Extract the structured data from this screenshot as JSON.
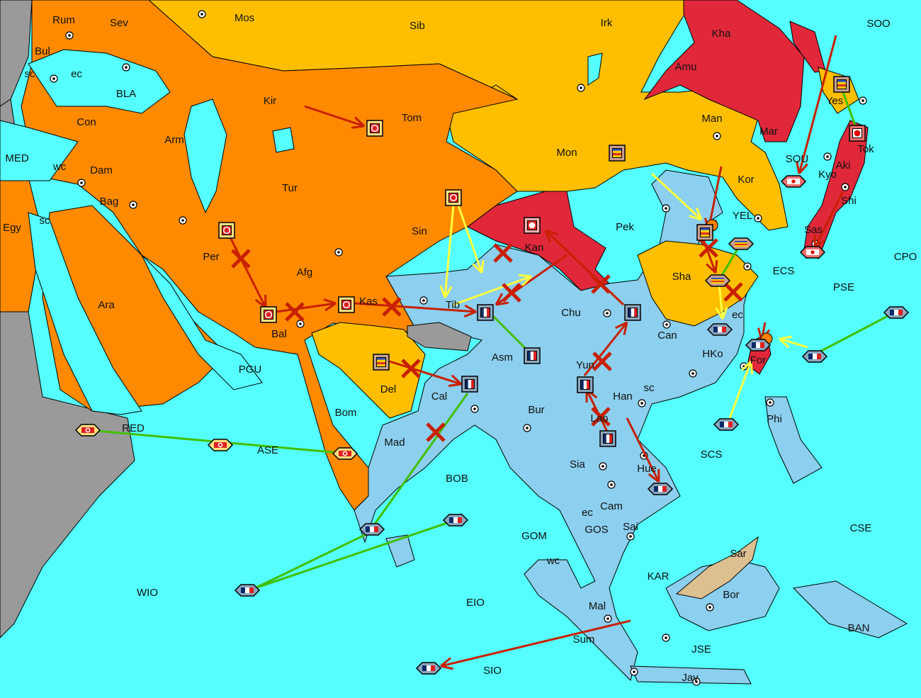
{
  "map": {
    "colors": {
      "sea": "#55ffff",
      "neutral": "#9a9a9a",
      "turkey": "#ff8a00",
      "china": "#ffbf00",
      "russia": "#e0283a",
      "france": "#8ccfee",
      "tan": "#dcc090",
      "order_move": "#c82000",
      "order_support": "#ffff40",
      "order_convoy": "#40c000"
    },
    "regions": [
      "Rum",
      "Sev",
      "Mos",
      "Sib",
      "Irk",
      "Kha",
      "SOO",
      "Bul",
      "sc",
      "ec",
      "BLA",
      "Amu",
      "Kir",
      "Tom",
      "Yes",
      "Con",
      "Man",
      "Mar",
      "Arm",
      "Mon",
      "Tok",
      "MED",
      "wc",
      "Dam",
      "SOU",
      "Kyo",
      "Kor",
      "Tur",
      "Aki",
      "Bag",
      "Shi",
      "YEL",
      "Egy",
      "sc",
      "Pek",
      "Sin",
      "Sas",
      "Per",
      "Kan",
      "CPO",
      "ECS",
      "Afg",
      "Sha",
      "PSE",
      "Ara",
      "Kas",
      "Tib",
      "Chu",
      "ec",
      "Bal",
      "Can",
      "Asm",
      "HKo",
      "PGU",
      "Yun",
      "For",
      "Del",
      "sc",
      "Cal",
      "Han",
      "Bur",
      "Bom",
      "Phi",
      "RED",
      "Lao",
      "Mad",
      "ASE",
      "SCS",
      "Sia",
      "Hue",
      "BOB",
      "Cam",
      "ec",
      "GOS",
      "Sai",
      "CSE",
      "GOM",
      "wc",
      "Sar",
      "KAR",
      "WIO",
      "Bor",
      "EIO",
      "Mal",
      "BAN",
      "Sum",
      "JSE",
      "SIO",
      "Jav"
    ],
    "units": [
      {
        "type": "army",
        "power": "turkey",
        "flag": "crescent-flag-icon"
      },
      {
        "type": "army",
        "power": "turkey",
        "flag": "crescent-flag-icon"
      },
      {
        "type": "army",
        "power": "turkey",
        "flag": "crescent-flag-icon"
      },
      {
        "type": "army",
        "power": "turkey",
        "flag": "crescent-flag-icon"
      },
      {
        "type": "army",
        "power": "turkey",
        "flag": "crescent-flag-icon"
      },
      {
        "type": "army",
        "power": "russia",
        "flag": "red-circle-flag-icon"
      },
      {
        "type": "army",
        "power": "china",
        "flag": "striped-flag-icon"
      },
      {
        "type": "army",
        "power": "china",
        "flag": "striped-flag-icon"
      },
      {
        "type": "army",
        "power": "china",
        "flag": "striped-flag-icon"
      },
      {
        "type": "army",
        "power": "china",
        "flag": "striped-flag-icon"
      },
      {
        "type": "army",
        "power": "japan",
        "flag": "rising-sun-flag-icon"
      },
      {
        "type": "army",
        "power": "france",
        "flag": "tricolor-flag-icon"
      },
      {
        "type": "army",
        "power": "france",
        "flag": "tricolor-flag-icon"
      },
      {
        "type": "army",
        "power": "france",
        "flag": "tricolor-flag-icon"
      },
      {
        "type": "army",
        "power": "france",
        "flag": "tricolor-flag-icon"
      },
      {
        "type": "army",
        "power": "france",
        "flag": "tricolor-flag-icon"
      },
      {
        "type": "army",
        "power": "france",
        "flag": "tricolor-flag-icon"
      },
      {
        "type": "fleet",
        "power": "japan",
        "flag": "rising-sun-flag-icon"
      },
      {
        "type": "fleet",
        "power": "japan",
        "flag": "rising-sun-flag-icon"
      },
      {
        "type": "fleet",
        "power": "china",
        "flag": "striped-flag-icon"
      },
      {
        "type": "fleet",
        "power": "china",
        "flag": "striped-flag-icon"
      },
      {
        "type": "fleet",
        "power": "france",
        "flag": "tricolor-flag-icon"
      },
      {
        "type": "fleet",
        "power": "france",
        "flag": "tricolor-flag-icon"
      },
      {
        "type": "fleet",
        "power": "france",
        "flag": "tricolor-flag-icon"
      },
      {
        "type": "fleet",
        "power": "france",
        "flag": "tricolor-flag-icon"
      },
      {
        "type": "fleet",
        "power": "france",
        "flag": "tricolor-flag-icon"
      },
      {
        "type": "fleet",
        "power": "france",
        "flag": "tricolor-flag-icon"
      },
      {
        "type": "fleet",
        "power": "france",
        "flag": "tricolor-flag-icon"
      },
      {
        "type": "fleet",
        "power": "france",
        "flag": "tricolor-flag-icon"
      },
      {
        "type": "fleet",
        "power": "france",
        "flag": "tricolor-flag-icon"
      },
      {
        "type": "fleet",
        "power": "france",
        "flag": "tricolor-flag-icon"
      },
      {
        "type": "fleet",
        "power": "turkey",
        "flag": "crescent-flag-icon"
      },
      {
        "type": "fleet",
        "power": "turkey",
        "flag": "crescent-flag-icon"
      },
      {
        "type": "fleet",
        "power": "turkey",
        "flag": "crescent-flag-icon"
      }
    ]
  }
}
